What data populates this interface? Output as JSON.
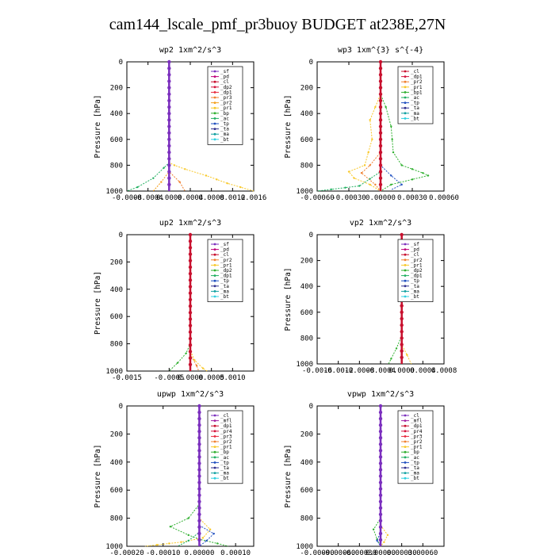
{
  "figure": {
    "title": "cam144_lscale_pmf_pr3buoy  BUDGET at238E,27N"
  },
  "chart_data": [
    {
      "type": "line",
      "title": "wp2  1xm^2/s^3",
      "ylabel": "Pressure [hPa]",
      "xlim": [
        -0.0008,
        0.0016
      ],
      "ylim": [
        1000,
        0
      ],
      "xticks": [
        "-0.0008",
        "-0.0004",
        "0.0000",
        "0.0004",
        "0.0008",
        "0.0012",
        "0.0016"
      ],
      "yticks": [
        "0",
        "200",
        "400",
        "600",
        "800",
        "1000"
      ],
      "legend": [
        "_sf",
        "_pd",
        "_cl",
        "_dp2",
        "_dp1",
        "_pr3",
        "_pr2",
        "_pr1",
        "_bp",
        "_ac",
        "_tp",
        "_ta",
        "_ma",
        "_bt"
      ],
      "colors": [
        "#7b2fbe",
        "#c0007a",
        "#c8102e",
        "#d4143c",
        "#e8293e",
        "#f08030",
        "#f4a020",
        "#f8c828",
        "#30b030",
        "#20b060",
        "#2050c0",
        "#303090",
        "#10a0a0",
        "#30d0e0"
      ],
      "series": [
        {
          "name": "_pr1",
          "points": [
            [
              0,
              0
            ],
            [
              0,
              780
            ],
            [
              0.0001,
              800
            ],
            [
              0.0003,
              830
            ],
            [
              0.0007,
              880
            ],
            [
              0.0011,
              940
            ],
            [
              0.0016,
              1000
            ]
          ]
        },
        {
          "name": "_ac",
          "points": [
            [
              0,
              0
            ],
            [
              0,
              780
            ],
            [
              -0.0001,
              820
            ],
            [
              -0.0003,
              900
            ],
            [
              -0.0006,
              970
            ],
            [
              -0.0008,
              1000
            ]
          ]
        },
        {
          "name": "_pr3",
          "points": [
            [
              0,
              0
            ],
            [
              0,
              850
            ],
            [
              0.0002,
              930
            ],
            [
              0.0003,
              1000
            ]
          ]
        },
        {
          "name": "_pr2",
          "points": [
            [
              0,
              0
            ],
            [
              0,
              850
            ],
            [
              -0.00015,
              930
            ],
            [
              -0.0003,
              1000
            ]
          ]
        },
        {
          "name": "_sf",
          "points": [
            [
              0,
              0
            ],
            [
              0,
              1000
            ]
          ]
        }
      ]
    },
    {
      "type": "line",
      "title": "wp3  1xm^{3} s^{-4}",
      "ylabel": "Pressure [hPa]",
      "xlim": [
        -0.0006,
        0.0006
      ],
      "ylim": [
        1000,
        0
      ],
      "xticks": [
        "-0.00060",
        "-0.00030",
        "0.00000",
        "0.00030",
        "0.00060"
      ],
      "yticks": [
        "0",
        "200",
        "400",
        "600",
        "800",
        "1000"
      ],
      "legend": [
        "_cl",
        "_dp1",
        "_pr2",
        "_pr1",
        "_bp1",
        "_ac",
        "_tp",
        "_ta",
        "_ma",
        "_bt"
      ],
      "colors": [
        "#c8102e",
        "#d4143c",
        "#f08030",
        "#f8c828",
        "#30b030",
        "#20b060",
        "#2050c0",
        "#303090",
        "#10a0a0",
        "#30d0e0"
      ],
      "series": [
        {
          "name": "_bp1",
          "points": [
            [
              0,
              0
            ],
            [
              0,
              250
            ],
            [
              5e-05,
              350
            ],
            [
              0.0001,
              500
            ],
            [
              0.00012,
              700
            ],
            [
              0.0002,
              800
            ],
            [
              0.0004,
              860
            ],
            [
              0.00045,
              880
            ],
            [
              0.0003,
              910
            ],
            [
              0.0001,
              950
            ],
            [
              0,
              1000
            ]
          ]
        },
        {
          "name": "_pr1",
          "points": [
            [
              0,
              0
            ],
            [
              0,
              250
            ],
            [
              -5e-05,
              350
            ],
            [
              -0.0001,
              450
            ],
            [
              -8e-05,
              600
            ],
            [
              -0.00015,
              800
            ],
            [
              -0.0003,
              850
            ],
            [
              -0.00025,
              900
            ],
            [
              -0.0001,
              950
            ],
            [
              0,
              1000
            ]
          ]
        },
        {
          "name": "_pr2",
          "points": [
            [
              0,
              0
            ],
            [
              0,
              700
            ],
            [
              -0.0001,
              800
            ],
            [
              -0.00018,
              860
            ],
            [
              -5e-05,
              950
            ],
            [
              0,
              1000
            ]
          ]
        },
        {
          "name": "_tp",
          "points": [
            [
              0,
              0
            ],
            [
              0,
              800
            ],
            [
              0.0001,
              880
            ],
            [
              0.0002,
              950
            ],
            [
              0.0001,
              990
            ]
          ]
        },
        {
          "name": "_ac",
          "points": [
            [
              0,
              0
            ],
            [
              0,
              850
            ],
            [
              -0.0002,
              960
            ],
            [
              -0.0006,
              1000
            ]
          ]
        },
        {
          "name": "_cl",
          "points": [
            [
              0,
              0
            ],
            [
              0,
              1000
            ]
          ]
        }
      ]
    },
    {
      "type": "line",
      "title": "up2  1xm^2/s^3",
      "ylabel": "Pressure [hPa]",
      "xlim": [
        -0.0015,
        0.0015
      ],
      "ylim": [
        1000,
        0
      ],
      "xticks": [
        "-0.0015",
        "-0.0005",
        "0.0000",
        "0.0005",
        "0.0010"
      ],
      "yticks": [
        "0",
        "200",
        "400",
        "600",
        "800",
        "1000"
      ],
      "legend": [
        "_sf",
        "_pd",
        "_cl",
        "_pr2",
        "_pr1",
        "_dp2",
        "_dp1",
        "_tp",
        "_ta",
        "_ma",
        "_bt"
      ],
      "colors": [
        "#7b2fbe",
        "#c0007a",
        "#c8102e",
        "#f08030",
        "#f8c828",
        "#30b030",
        "#20b060",
        "#2050c0",
        "#303090",
        "#10a0a0",
        "#30d0e0"
      ],
      "series": [
        {
          "name": "_dp2",
          "points": [
            [
              0,
              0
            ],
            [
              0,
              800
            ],
            [
              -0.0001,
              870
            ],
            [
              -0.0003,
              940
            ],
            [
              -0.0005,
              1000
            ]
          ]
        },
        {
          "name": "_pr1",
          "points": [
            [
              0,
              0
            ],
            [
              0,
              850
            ],
            [
              0.0001,
              920
            ],
            [
              0.0003,
              980
            ],
            [
              0.0004,
              1000
            ]
          ]
        },
        {
          "name": "_pr2",
          "points": [
            [
              0,
              0
            ],
            [
              0,
              880
            ],
            [
              0.00015,
              960
            ],
            [
              0.0002,
              1000
            ]
          ]
        },
        {
          "name": "_cl",
          "points": [
            [
              0,
              0
            ],
            [
              0,
              1000
            ]
          ]
        }
      ]
    },
    {
      "type": "line",
      "title": "vp2  1xm^2/s^3",
      "ylabel": "Pressure [hPa]",
      "xlim": [
        -0.0016,
        0.0008
      ],
      "ylim": [
        1000,
        0
      ],
      "xticks": [
        "-0.0016",
        "-0.0012",
        "-0.0008",
        "-0.0004",
        "0.0000",
        "0.0004",
        "0.0008"
      ],
      "yticks": [
        "0",
        "200",
        "400",
        "600",
        "800",
        "1000"
      ],
      "legend": [
        "_sf",
        "_pd",
        "_cl",
        "_pr2",
        "_pr1",
        "_dp2",
        "_dp1",
        "_tp",
        "_ta",
        "_ma",
        "_bt"
      ],
      "colors": [
        "#7b2fbe",
        "#c0007a",
        "#c8102e",
        "#f08030",
        "#f8c828",
        "#30b030",
        "#20b060",
        "#2050c0",
        "#303090",
        "#10a0a0",
        "#30d0e0"
      ],
      "series": [
        {
          "name": "_dp2",
          "points": [
            [
              0,
              0
            ],
            [
              0,
              780
            ],
            [
              -0.0001,
              880
            ],
            [
              -0.0002,
              960
            ],
            [
              -0.00025,
              1000
            ]
          ]
        },
        {
          "name": "_pr1",
          "points": [
            [
              0,
              0
            ],
            [
              0,
              850
            ],
            [
              0.0001,
              930
            ],
            [
              0.00018,
              1000
            ]
          ]
        },
        {
          "name": "_cl",
          "points": [
            [
              0,
              0
            ],
            [
              0,
              1000
            ]
          ]
        }
      ]
    },
    {
      "type": "line",
      "title": "upwp  1xm^2/s^3",
      "ylabel": "Pressure [hPa]",
      "xlim": [
        -0.0002,
        0.00015
      ],
      "ylim": [
        1000,
        0
      ],
      "xticks": [
        "-0.00020",
        "-0.00010",
        "0.00000",
        "0.00010"
      ],
      "yticks": [
        "0",
        "200",
        "400",
        "600",
        "800",
        "1000"
      ],
      "legend": [
        "_cl",
        "_mfl",
        "_dp1",
        "_pr4",
        "_pr3",
        "_pr2",
        "_pr1",
        "_bp",
        "_ac",
        "_tp",
        "_ta",
        "_ma",
        "_bt"
      ],
      "colors": [
        "#7b2fbe",
        "#a020a0",
        "#c8102e",
        "#d4143c",
        "#e8293e",
        "#f08030",
        "#f8c828",
        "#30b030",
        "#20b060",
        "#2050c0",
        "#303090",
        "#10a0a0",
        "#30d0e0"
      ],
      "series": [
        {
          "name": "_bp",
          "points": [
            [
              0,
              0
            ],
            [
              0,
              700
            ],
            [
              -3e-05,
              800
            ],
            [
              -8e-05,
              860
            ],
            [
              -3e-05,
              920
            ],
            [
              0,
              950
            ],
            [
              5e-05,
              980
            ],
            [
              8e-05,
              1000
            ]
          ]
        },
        {
          "name": "_pr1",
          "points": [
            [
              0,
              0
            ],
            [
              0,
              800
            ],
            [
              3e-05,
              880
            ],
            [
              1e-05,
              940
            ],
            [
              -5e-05,
              970
            ],
            [
              -0.00015,
              1000
            ]
          ]
        },
        {
          "name": "_tp",
          "points": [
            [
              0,
              0
            ],
            [
              0,
              850
            ],
            [
              4e-05,
              910
            ],
            [
              2e-05,
              960
            ],
            [
              0,
              1000
            ]
          ]
        },
        {
          "name": "_ac",
          "points": [
            [
              0,
              0
            ],
            [
              0,
              900
            ],
            [
              -3e-05,
              960
            ],
            [
              -6e-05,
              1000
            ]
          ]
        },
        {
          "name": "_cl",
          "points": [
            [
              0,
              0
            ],
            [
              0,
              1000
            ]
          ]
        }
      ]
    },
    {
      "type": "line",
      "title": "vpwp  1xm^2/s^3",
      "ylabel": "Pressure [hPa]",
      "xlim": [
        -0.0009,
        0.0009
      ],
      "ylim": [
        1000,
        0
      ],
      "xticks": [
        "-0.00090",
        "-0.00060",
        "-0.00030",
        "0.00000",
        "0.00030",
        "0.00060"
      ],
      "yticks": [
        "0",
        "200",
        "400",
        "600",
        "800",
        "1000"
      ],
      "legend": [
        "_cl",
        "_mfl",
        "_dp1",
        "_pr4",
        "_pr3",
        "_pr2",
        "_pr1",
        "_bp",
        "_ac",
        "_tp",
        "_ta",
        "_ma",
        "_bt"
      ],
      "colors": [
        "#7b2fbe",
        "#a020a0",
        "#c8102e",
        "#d4143c",
        "#e8293e",
        "#f08030",
        "#f8c828",
        "#30b030",
        "#20b060",
        "#2050c0",
        "#303090",
        "#10a0a0",
        "#30d0e0"
      ],
      "series": [
        {
          "name": "_bp",
          "points": [
            [
              0,
              0
            ],
            [
              0,
              800
            ],
            [
              -0.0001,
              880
            ],
            [
              -5e-05,
              950
            ],
            [
              0,
              1000
            ]
          ]
        },
        {
          "name": "_pr1",
          "points": [
            [
              0,
              0
            ],
            [
              0,
              850
            ],
            [
              0.0001,
              920
            ],
            [
              5e-05,
              970
            ],
            [
              0,
              1000
            ]
          ]
        },
        {
          "name": "_tp",
          "points": [
            [
              0,
              0
            ],
            [
              0,
              900
            ],
            [
              -5e-05,
              960
            ],
            [
              0,
              1000
            ]
          ]
        },
        {
          "name": "_cl",
          "points": [
            [
              0,
              0
            ],
            [
              0,
              1000
            ]
          ]
        }
      ]
    }
  ]
}
